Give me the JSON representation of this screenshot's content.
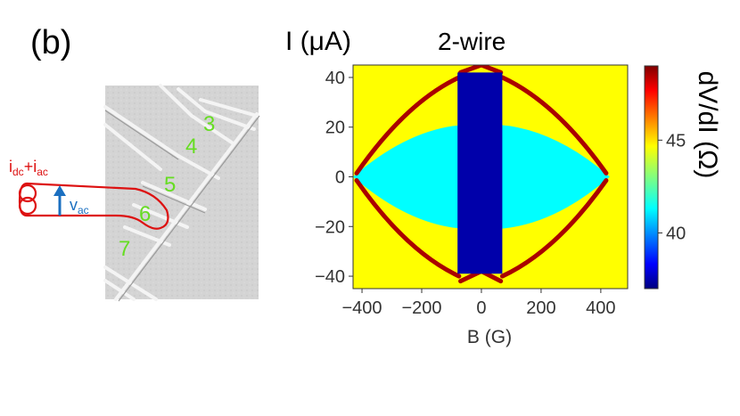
{
  "panel_label": "(b)",
  "image": {
    "contact_labels": [
      "3",
      "4",
      "5",
      "6",
      "7"
    ],
    "current_label_main": "i",
    "current_label_sub1": "dc",
    "current_label_plus": "+i",
    "current_label_sub2": "ac",
    "voltage_label_main": "v",
    "voltage_label_sub": "ac",
    "colors": {
      "contacts": "#66dd22",
      "current": "#dd1111",
      "voltage": "#1a6fc0"
    }
  },
  "chart_data": {
    "type": "heatmap",
    "title": "2-wire",
    "ylabel": "I (μA)",
    "xlabel": "B (G)",
    "colorbar_label": "dV/dI (Ω)",
    "xlim": [
      -430,
      490
    ],
    "ylim": [
      -45,
      45
    ],
    "xticks": [
      -400,
      -200,
      0,
      200,
      400
    ],
    "xtick_labels": [
      "−400",
      "−200",
      "0",
      "200",
      "400"
    ],
    "yticks": [
      40,
      20,
      0,
      -20,
      -40
    ],
    "ytick_labels": [
      "40",
      "20",
      "0",
      "−20",
      "−40"
    ],
    "colorbar_range": [
      37,
      49
    ],
    "colorbar_ticks": [
      40,
      45
    ],
    "colorbar_tick_labels": [
      "40",
      "45"
    ],
    "colormap": "jet",
    "regions": {
      "background_value": 44.5,
      "lens_value": 41.5,
      "lens_half_width_B": 430,
      "lens_half_height_I": 21,
      "central_band_value": 37.5,
      "central_band_B": [
        -80,
        70
      ],
      "central_band_I": [
        -39,
        42
      ],
      "transition_value": 48.5
    }
  }
}
